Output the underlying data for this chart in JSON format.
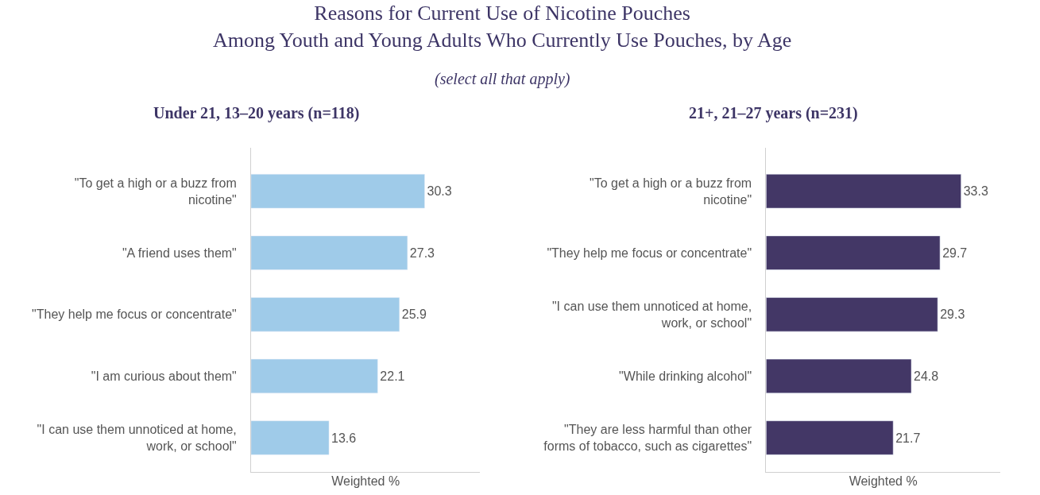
{
  "chart_data": [
    {
      "type": "bar",
      "orientation": "horizontal",
      "title": "Reasons for Current Use of Nicotine Pouches\nAmong Youth and Young Adults Who Currently Use Pouches, by Age",
      "subtitle": "(select all that apply)",
      "annotations": [
        "Under 21, 13–20 years (n=118)"
      ],
      "xlabel": "Weighted %",
      "categories": [
        "\"To get a high or a buzz from nicotine\"",
        "\"A friend uses them\"",
        "\"They help me focus or concentrate\"",
        "\"I am curious about them\"",
        "\"I can use them unnoticed at home, work, or school\""
      ],
      "values": [
        30.3,
        27.3,
        25.9,
        22.1,
        13.6
      ],
      "color": "#9fcbe9",
      "xlim": [
        0,
        40
      ],
      "data_labels": true,
      "tick_labels": "y"
    },
    {
      "type": "bar",
      "orientation": "horizontal",
      "annotations": [
        "21+, 21–27 years (n=231)"
      ],
      "xlabel": "Weighted %",
      "categories": [
        "\"To get a high or a buzz from nicotine\"",
        "\"They help me focus or concentrate\"",
        "\"I can use them unnoticed at home, work, or school\"",
        "\"While drinking alcohol\"",
        "\"They are less harmful than other forms of tobacco, such as cigarettes\""
      ],
      "values": [
        33.3,
        29.7,
        29.3,
        24.8,
        21.7
      ],
      "color": "#433766",
      "xlim": [
        0,
        40
      ],
      "data_labels": true,
      "tick_labels": "y"
    }
  ]
}
